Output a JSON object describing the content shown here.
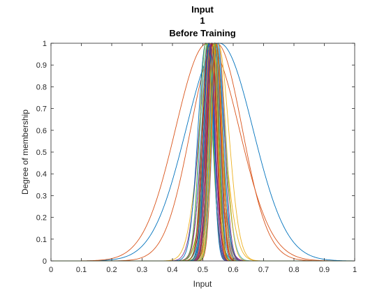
{
  "chart_data": {
    "type": "line",
    "title": [
      "Input",
      "1",
      "Before Training"
    ],
    "xlabel": "Input",
    "ylabel": "Degree of membership",
    "xlim": [
      0,
      1
    ],
    "ylim": [
      0,
      1
    ],
    "xticks": [
      "0",
      "0.1",
      "0.2",
      "0.3",
      "0.4",
      "0.5",
      "0.6",
      "0.7",
      "0.8",
      "0.9",
      "1"
    ],
    "yticks": [
      "0",
      "0.1",
      "0.2",
      "0.3",
      "0.4",
      "0.5",
      "0.6",
      "0.7",
      "0.8",
      "0.9",
      "1"
    ],
    "grid": false,
    "legend": "none",
    "curve_shape": "gaussian",
    "series": [
      {
        "center": 0.555,
        "sigma": 0.11,
        "color": "#0072BD"
      },
      {
        "center": 0.515,
        "sigma": 0.105,
        "color": "#D95319"
      },
      {
        "center": 0.545,
        "sigma": 0.085,
        "color": "#D95319"
      },
      {
        "center": 0.53,
        "sigma": 0.04,
        "color": "#EDB120"
      },
      {
        "center": 0.55,
        "sigma": 0.035,
        "color": "#EDB120"
      },
      {
        "center": 0.52,
        "sigma": 0.032,
        "color": "#7E2F8E"
      },
      {
        "center": 0.54,
        "sigma": 0.03,
        "color": "#77AC30"
      },
      {
        "center": 0.545,
        "sigma": 0.028,
        "color": "#4DBEEE"
      },
      {
        "center": 0.525,
        "sigma": 0.027,
        "color": "#A2142F"
      },
      {
        "center": 0.51,
        "sigma": 0.026,
        "color": "#0072BD"
      },
      {
        "center": 0.535,
        "sigma": 0.025,
        "color": "#D95319"
      },
      {
        "center": 0.55,
        "sigma": 0.025,
        "color": "#EDB120"
      },
      {
        "center": 0.52,
        "sigma": 0.024,
        "color": "#7E2F8E"
      },
      {
        "center": 0.54,
        "sigma": 0.024,
        "color": "#77AC30"
      },
      {
        "center": 0.515,
        "sigma": 0.023,
        "color": "#4DBEEE"
      },
      {
        "center": 0.53,
        "sigma": 0.023,
        "color": "#A2142F"
      },
      {
        "center": 0.545,
        "sigma": 0.022,
        "color": "#0072BD"
      },
      {
        "center": 0.525,
        "sigma": 0.022,
        "color": "#D95319"
      },
      {
        "center": 0.535,
        "sigma": 0.021,
        "color": "#EDB120"
      },
      {
        "center": 0.55,
        "sigma": 0.021,
        "color": "#7E2F8E"
      },
      {
        "center": 0.51,
        "sigma": 0.021,
        "color": "#77AC30"
      },
      {
        "center": 0.54,
        "sigma": 0.02,
        "color": "#4DBEEE"
      },
      {
        "center": 0.52,
        "sigma": 0.02,
        "color": "#A2142F"
      },
      {
        "center": 0.53,
        "sigma": 0.02,
        "color": "#0072BD"
      },
      {
        "center": 0.545,
        "sigma": 0.019,
        "color": "#D95319"
      },
      {
        "center": 0.525,
        "sigma": 0.019,
        "color": "#EDB120"
      },
      {
        "center": 0.535,
        "sigma": 0.018,
        "color": "#7E2F8E"
      },
      {
        "center": 0.515,
        "sigma": 0.018,
        "color": "#77AC30"
      },
      {
        "center": 0.55,
        "sigma": 0.018,
        "color": "#4DBEEE"
      },
      {
        "center": 0.54,
        "sigma": 0.018,
        "color": "#A2142F"
      },
      {
        "center": 0.52,
        "sigma": 0.017,
        "color": "#0072BD"
      },
      {
        "center": 0.53,
        "sigma": 0.017,
        "color": "#D95319"
      },
      {
        "center": 0.545,
        "sigma": 0.017,
        "color": "#EDB120"
      },
      {
        "center": 0.525,
        "sigma": 0.016,
        "color": "#7E2F8E"
      },
      {
        "center": 0.535,
        "sigma": 0.016,
        "color": "#77AC30"
      },
      {
        "center": 0.54,
        "sigma": 0.016,
        "color": "#4DBEEE"
      },
      {
        "center": 0.53,
        "sigma": 0.015,
        "color": "#A2142F"
      },
      {
        "center": 0.52,
        "sigma": 0.015,
        "color": "#0072BD"
      },
      {
        "center": 0.545,
        "sigma": 0.015,
        "color": "#D95319"
      },
      {
        "center": 0.535,
        "sigma": 0.014,
        "color": "#EDB120"
      },
      {
        "center": 0.525,
        "sigma": 0.014,
        "color": "#7E2F8E"
      },
      {
        "center": 0.54,
        "sigma": 0.014,
        "color": "#77AC30"
      }
    ]
  }
}
